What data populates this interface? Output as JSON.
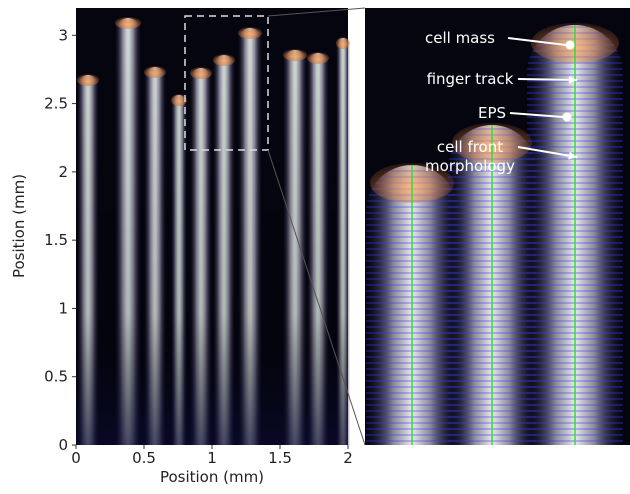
{
  "main_panel": {
    "xlabel": "Position (mm)",
    "ylabel": "Position (mm)",
    "xlim": [
      0,
      2
    ],
    "ylim": [
      0,
      3.2
    ],
    "xticks": [
      0,
      0.5,
      1,
      1.5,
      2
    ],
    "yticks": [
      0,
      0.5,
      1,
      1.5,
      2,
      2.5,
      3
    ]
  },
  "inset": {
    "annotations": [
      {
        "lines": [
          "cell mass"
        ]
      },
      {
        "lines": [
          "finger track"
        ]
      },
      {
        "lines": [
          "EPS"
        ]
      },
      {
        "lines": [
          "cell front",
          "morphology"
        ]
      }
    ]
  }
}
